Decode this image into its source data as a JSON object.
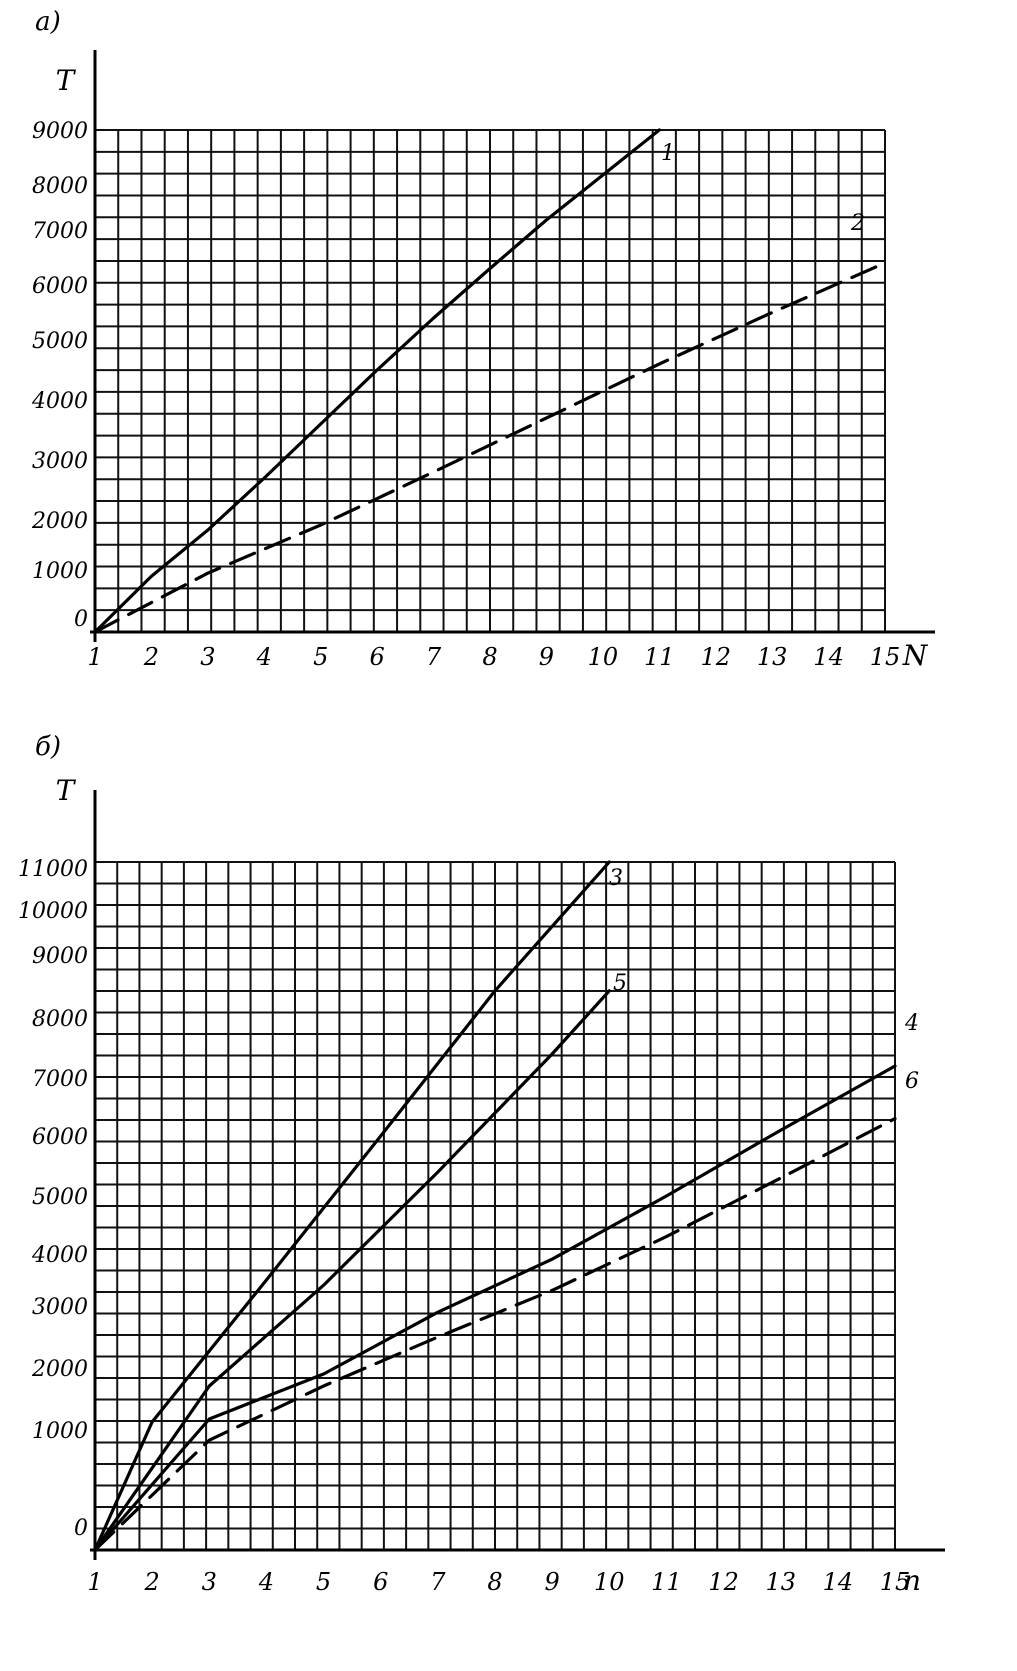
{
  "chart_data": [
    {
      "type": "line",
      "panel_label": "а)",
      "ylabel": "T",
      "xlabel": "N",
      "x_ticks": [
        "1",
        "2",
        "3",
        "4",
        "5",
        "6",
        "7",
        "8",
        "9",
        "10",
        "11",
        "12",
        "13",
        "14",
        "15"
      ],
      "y_ticks": [
        "0",
        "1000",
        "2000",
        "3000",
        "4000",
        "5000",
        "6000",
        "7000",
        "8000",
        "9000"
      ],
      "grid": true,
      "series": [
        {
          "name": "1",
          "style": "solid",
          "x": [
            1,
            2,
            3,
            4,
            5,
            6,
            7,
            8,
            9,
            10,
            11
          ],
          "y": [
            0,
            900,
            1800,
            2700,
            3600,
            4500,
            5400,
            6300,
            7200,
            8100,
            9000
          ]
        },
        {
          "name": "2",
          "style": "dashed",
          "x": [
            1,
            3,
            5,
            7,
            9,
            11,
            13,
            15
          ],
          "y": [
            0,
            950,
            1900,
            2800,
            3700,
            4600,
            5500,
            6400
          ]
        }
      ]
    },
    {
      "type": "line",
      "panel_label": "б)",
      "ylabel": "T",
      "xlabel": "n",
      "x_ticks": [
        "1",
        "2",
        "3",
        "4",
        "5",
        "6",
        "7",
        "8",
        "9",
        "10",
        "11",
        "12",
        "13",
        "14",
        "15"
      ],
      "y_ticks": [
        "0",
        "1000",
        "2000",
        "3000",
        "4000",
        "5000",
        "6000",
        "7000",
        "8000",
        "9000",
        "10000",
        "11000"
      ],
      "grid": true,
      "series": [
        {
          "name": "3",
          "style": "solid",
          "x": [
            1,
            2,
            4,
            6,
            8,
            10
          ],
          "y": [
            0,
            1100,
            3500,
            6000,
            8400,
            11000
          ]
        },
        {
          "name": "5",
          "style": "solid",
          "x": [
            1,
            3,
            5,
            7,
            9,
            10
          ],
          "y": [
            0,
            1700,
            3400,
            5400,
            7400,
            8400
          ]
        },
        {
          "name": "4",
          "style": "solid",
          "x": [
            1,
            3,
            5,
            7,
            9,
            11,
            13,
            15
          ],
          "y": [
            0,
            1150,
            1900,
            2900,
            3900,
            5000,
            6100,
            7200
          ]
        },
        {
          "name": "6",
          "style": "dashed",
          "x": [
            1,
            3,
            5,
            7,
            9,
            11,
            13,
            15
          ],
          "y": [
            0,
            900,
            1700,
            2500,
            3300,
            4300,
            5300,
            6300
          ]
        }
      ]
    }
  ]
}
